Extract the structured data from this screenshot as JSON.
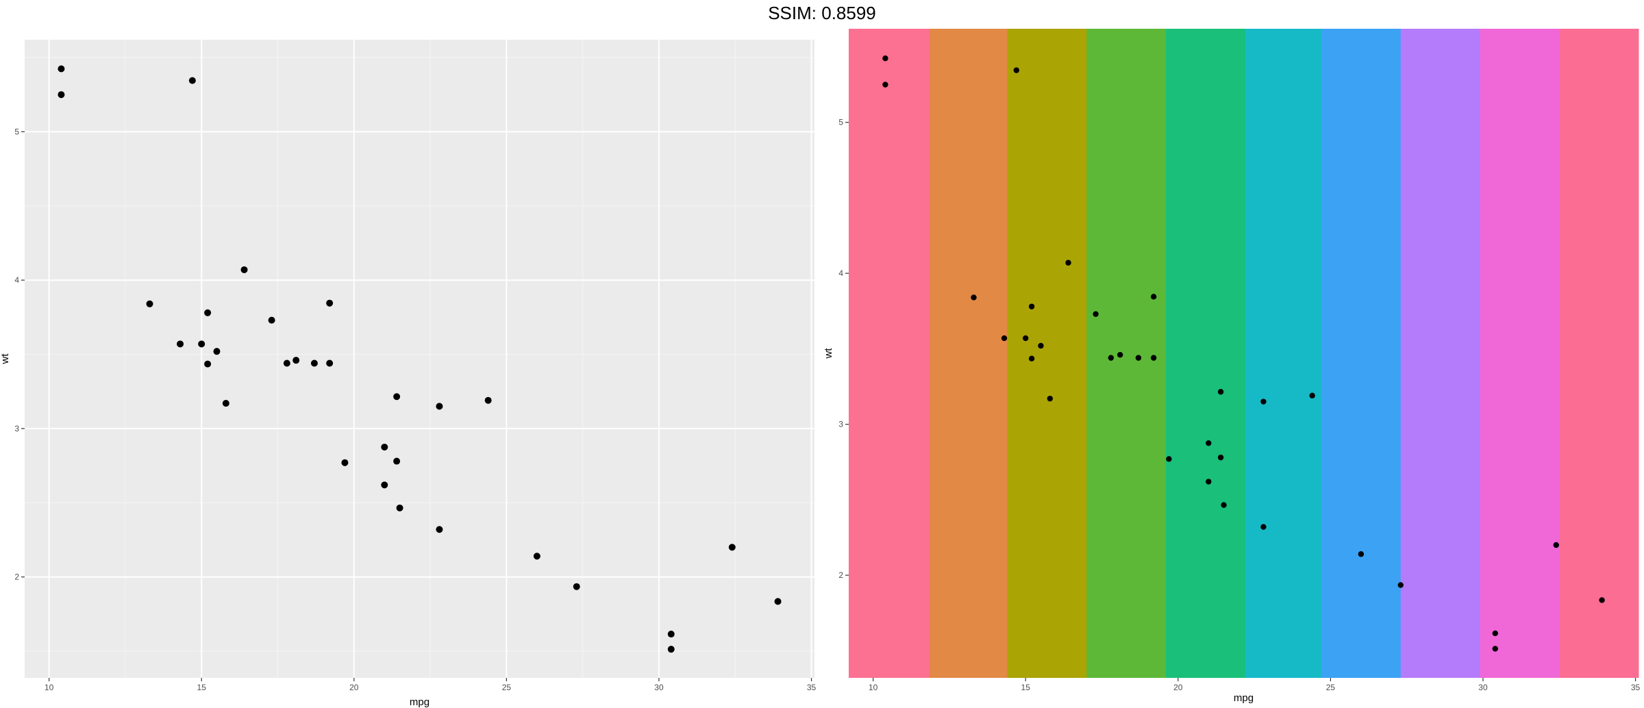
{
  "header": {
    "title": "SSIM: 0.8599"
  },
  "chart_data": [
    {
      "type": "scatter",
      "title": "",
      "xlabel": "mpg",
      "ylabel": "wt",
      "xlim": [
        9.2,
        35.1
      ],
      "ylim": [
        1.32,
        5.62
      ],
      "xticks": [
        10,
        15,
        20,
        25,
        30,
        35
      ],
      "yticks": [
        2,
        3,
        4,
        5
      ],
      "grid": true,
      "background": "#ebebeb",
      "point_color": "#000000",
      "points": [
        [
          21.0,
          2.62
        ],
        [
          21.0,
          2.875
        ],
        [
          22.8,
          2.32
        ],
        [
          21.4,
          3.215
        ],
        [
          18.7,
          3.44
        ],
        [
          18.1,
          3.46
        ],
        [
          14.3,
          3.57
        ],
        [
          24.4,
          3.19
        ],
        [
          22.8,
          3.15
        ],
        [
          19.2,
          3.44
        ],
        [
          17.8,
          3.44
        ],
        [
          16.4,
          4.07
        ],
        [
          17.3,
          3.73
        ],
        [
          15.2,
          3.78
        ],
        [
          10.4,
          5.25
        ],
        [
          10.4,
          5.424
        ],
        [
          14.7,
          5.345
        ],
        [
          32.4,
          2.2
        ],
        [
          30.4,
          1.615
        ],
        [
          33.9,
          1.835
        ],
        [
          21.5,
          2.465
        ],
        [
          15.5,
          3.52
        ],
        [
          15.2,
          3.435
        ],
        [
          13.3,
          3.84
        ],
        [
          19.2,
          3.845
        ],
        [
          27.3,
          1.935
        ],
        [
          26.0,
          2.14
        ],
        [
          30.4,
          1.513
        ],
        [
          15.8,
          3.17
        ],
        [
          19.7,
          2.77
        ],
        [
          15.0,
          3.57
        ],
        [
          21.4,
          2.78
        ]
      ]
    },
    {
      "type": "scatter",
      "title": "",
      "xlabel": "mpg",
      "ylabel": "wt",
      "xlim": [
        9.2,
        35.1
      ],
      "ylim": [
        1.32,
        5.62
      ],
      "xticks": [
        10,
        15,
        20,
        25,
        30,
        35
      ],
      "yticks": [
        2,
        3,
        4,
        5
      ],
      "grid": false,
      "point_color": "#000000",
      "bands": [
        {
          "from": 9.2,
          "to": 11.85,
          "color": "#fc7091"
        },
        {
          "from": 11.85,
          "to": 14.4,
          "color": "#e18945"
        },
        {
          "from": 14.4,
          "to": 17.0,
          "color": "#aba405"
        },
        {
          "from": 17.0,
          "to": 19.6,
          "color": "#5db837"
        },
        {
          "from": 19.6,
          "to": 22.2,
          "color": "#1abf7a"
        },
        {
          "from": 22.2,
          "to": 24.7,
          "color": "#16bac7"
        },
        {
          "from": 24.7,
          "to": 27.3,
          "color": "#3ba2f4"
        },
        {
          "from": 27.3,
          "to": 29.9,
          "color": "#b47cfb"
        },
        {
          "from": 29.9,
          "to": 32.5,
          "color": "#f067d7"
        },
        {
          "from": 32.5,
          "to": 35.1,
          "color": "#fb6d92"
        }
      ],
      "points": [
        [
          21.0,
          2.62
        ],
        [
          21.0,
          2.875
        ],
        [
          22.8,
          2.32
        ],
        [
          21.4,
          3.215
        ],
        [
          18.7,
          3.44
        ],
        [
          18.1,
          3.46
        ],
        [
          14.3,
          3.57
        ],
        [
          24.4,
          3.19
        ],
        [
          22.8,
          3.15
        ],
        [
          19.2,
          3.44
        ],
        [
          17.8,
          3.44
        ],
        [
          16.4,
          4.07
        ],
        [
          17.3,
          3.73
        ],
        [
          15.2,
          3.78
        ],
        [
          10.4,
          5.25
        ],
        [
          10.4,
          5.424
        ],
        [
          14.7,
          5.345
        ],
        [
          32.4,
          2.2
        ],
        [
          30.4,
          1.615
        ],
        [
          33.9,
          1.835
        ],
        [
          21.5,
          2.465
        ],
        [
          15.5,
          3.52
        ],
        [
          15.2,
          3.435
        ],
        [
          13.3,
          3.84
        ],
        [
          19.2,
          3.845
        ],
        [
          27.3,
          1.935
        ],
        [
          26.0,
          2.14
        ],
        [
          30.4,
          1.513
        ],
        [
          15.8,
          3.17
        ],
        [
          19.7,
          2.77
        ],
        [
          15.0,
          3.57
        ],
        [
          21.4,
          2.78
        ]
      ]
    }
  ]
}
